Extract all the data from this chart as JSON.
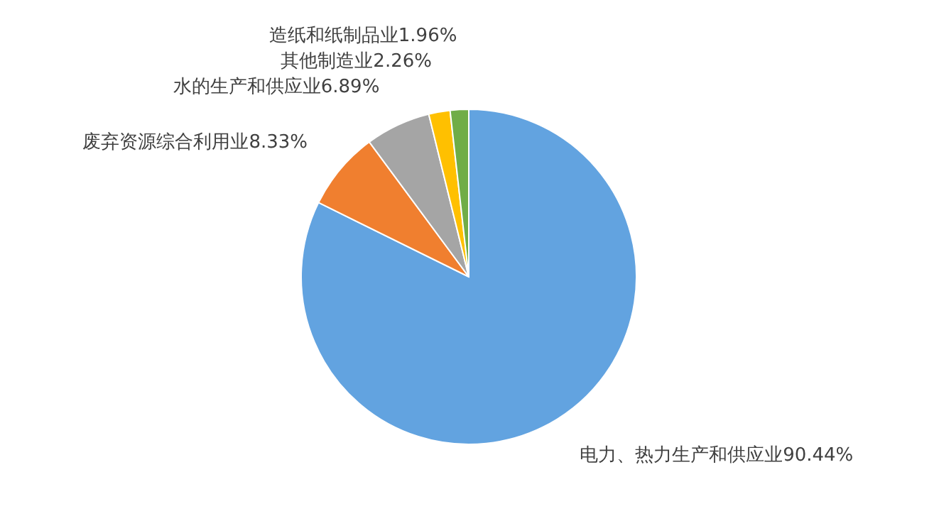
{
  "chart_data": {
    "type": "pie",
    "categories": [
      "电力、热力生产和供应业",
      "废弃资源综合利用业",
      "水的生产和供应业",
      "其他制造业",
      "造纸和纸制品业"
    ],
    "values": [
      90.44,
      8.33,
      6.89,
      2.26,
      1.96
    ],
    "value_labels": [
      "90.44%",
      "8.33%",
      "6.89%",
      "2.26%",
      "1.96%"
    ],
    "colors": [
      "#62a3e0",
      "#f07f2f",
      "#a5a5a5",
      "#ffc000",
      "#70ad47"
    ]
  }
}
